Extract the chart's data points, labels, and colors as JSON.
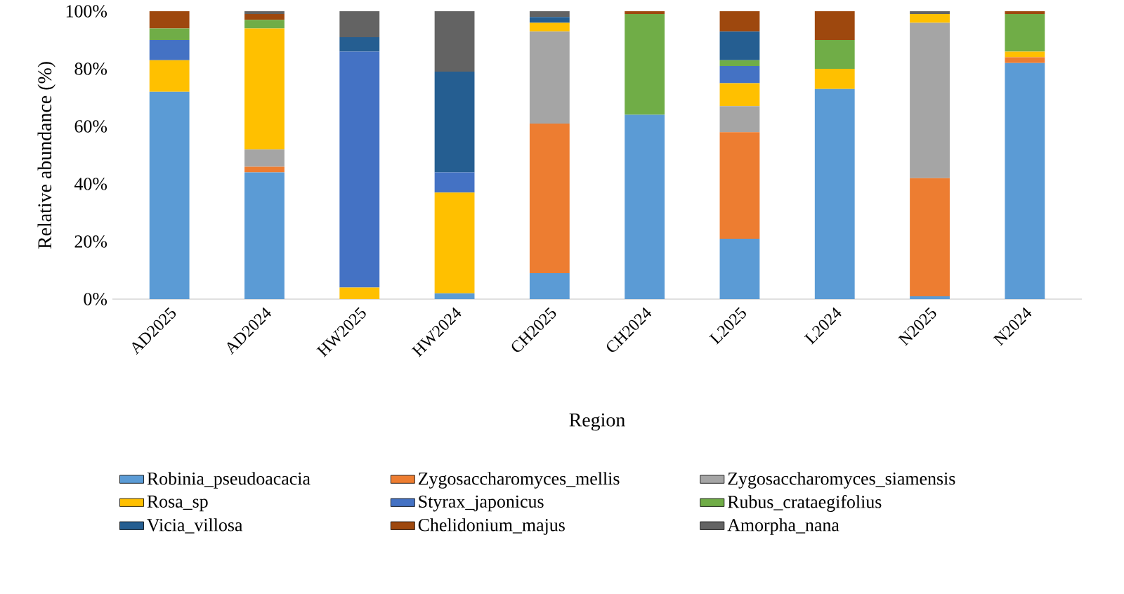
{
  "chart_data": {
    "type": "bar",
    "stacked": true,
    "xlabel": "Region",
    "ylabel": "Relative abundance (%)",
    "categories": [
      "AD2025",
      "AD2024",
      "HW2025",
      "HW2024",
      "CH2025",
      "CH2024",
      "L2025",
      "L2024",
      "N2025",
      "N2024"
    ],
    "ylim": [
      0,
      100
    ],
    "yticks": [
      {
        "value": 0,
        "label": "0%"
      },
      {
        "value": 20,
        "label": "20%"
      },
      {
        "value": 40,
        "label": "40%"
      },
      {
        "value": 60,
        "label": "60%"
      },
      {
        "value": 80,
        "label": "80%"
      },
      {
        "value": 100,
        "label": "100%"
      }
    ],
    "legend": "bottom",
    "series": [
      {
        "name": "Robinia_pseudoacacia",
        "color": "#5b9bd5",
        "values": [
          72,
          44,
          0,
          2,
          9,
          64,
          21,
          73,
          1,
          82
        ]
      },
      {
        "name": "Zygosaccharomyces_mellis",
        "color": "#ed7d31",
        "values": [
          0,
          2,
          0,
          0,
          52,
          0,
          37,
          0,
          41,
          2
        ]
      },
      {
        "name": "Zygosaccharomyces_siamensis",
        "color": "#a5a5a5",
        "values": [
          0,
          6,
          0,
          0,
          32,
          0,
          9,
          0,
          54,
          0
        ]
      },
      {
        "name": "Rosa_sp",
        "color": "#ffc000",
        "values": [
          11,
          42,
          4,
          35,
          3,
          0,
          8,
          7,
          3,
          2
        ]
      },
      {
        "name": "Styrax_japonicus",
        "color": "#4472c4",
        "values": [
          7,
          0,
          82,
          7,
          0,
          0,
          6,
          0,
          0,
          0
        ]
      },
      {
        "name": "Rubus_crataegifolius",
        "color": "#70ad47",
        "values": [
          4,
          3,
          0,
          0,
          0,
          35,
          2,
          10,
          0,
          13
        ]
      },
      {
        "name": "Vicia_villosa",
        "color": "#255e91",
        "values": [
          0,
          0,
          5,
          35,
          2,
          0,
          10,
          0,
          0,
          0
        ]
      },
      {
        "name": "Chelidonium_majus",
        "color": "#9e480e",
        "values": [
          6,
          2,
          0,
          0,
          0,
          1,
          7,
          10,
          0,
          1
        ]
      },
      {
        "name": "Amorpha_nana",
        "color": "#636363",
        "values": [
          0,
          1,
          9,
          21,
          2,
          0,
          0,
          0,
          1,
          0
        ]
      }
    ]
  }
}
